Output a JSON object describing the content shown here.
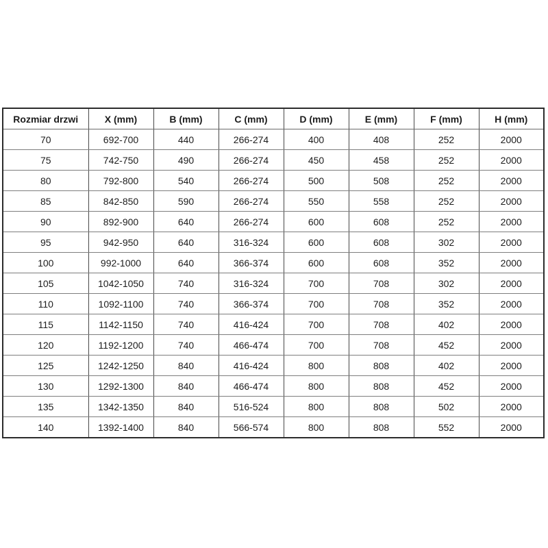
{
  "table": {
    "columns": [
      "Rozmiar drzwi",
      "X (mm)",
      "B (mm)",
      "C (mm)",
      "D (mm)",
      "E (mm)",
      "F (mm)",
      "H (mm)"
    ],
    "rows": [
      [
        "70",
        "692-700",
        "440",
        "266-274",
        "400",
        "408",
        "252",
        "2000"
      ],
      [
        "75",
        "742-750",
        "490",
        "266-274",
        "450",
        "458",
        "252",
        "2000"
      ],
      [
        "80",
        "792-800",
        "540",
        "266-274",
        "500",
        "508",
        "252",
        "2000"
      ],
      [
        "85",
        "842-850",
        "590",
        "266-274",
        "550",
        "558",
        "252",
        "2000"
      ],
      [
        "90",
        "892-900",
        "640",
        "266-274",
        "600",
        "608",
        "252",
        "2000"
      ],
      [
        "95",
        "942-950",
        "640",
        "316-324",
        "600",
        "608",
        "302",
        "2000"
      ],
      [
        "100",
        "992-1000",
        "640",
        "366-374",
        "600",
        "608",
        "352",
        "2000"
      ],
      [
        "105",
        "1042-1050",
        "740",
        "316-324",
        "700",
        "708",
        "302",
        "2000"
      ],
      [
        "110",
        "1092-1100",
        "740",
        "366-374",
        "700",
        "708",
        "352",
        "2000"
      ],
      [
        "115",
        "1142-1150",
        "740",
        "416-424",
        "700",
        "708",
        "402",
        "2000"
      ],
      [
        "120",
        "1192-1200",
        "740",
        "466-474",
        "700",
        "708",
        "452",
        "2000"
      ],
      [
        "125",
        "1242-1250",
        "840",
        "416-424",
        "800",
        "808",
        "402",
        "2000"
      ],
      [
        "130",
        "1292-1300",
        "840",
        "466-474",
        "800",
        "808",
        "452",
        "2000"
      ],
      [
        "135",
        "1342-1350",
        "840",
        "516-524",
        "800",
        "808",
        "502",
        "2000"
      ],
      [
        "140",
        "1392-1400",
        "840",
        "566-574",
        "800",
        "808",
        "552",
        "2000"
      ]
    ]
  },
  "colors": {
    "background": "#ffffff",
    "text": "#1c1c1c",
    "border_outer": "#2b2b2b",
    "border_vertical": "#474747",
    "border_horizontal": "#7d7d7d"
  }
}
